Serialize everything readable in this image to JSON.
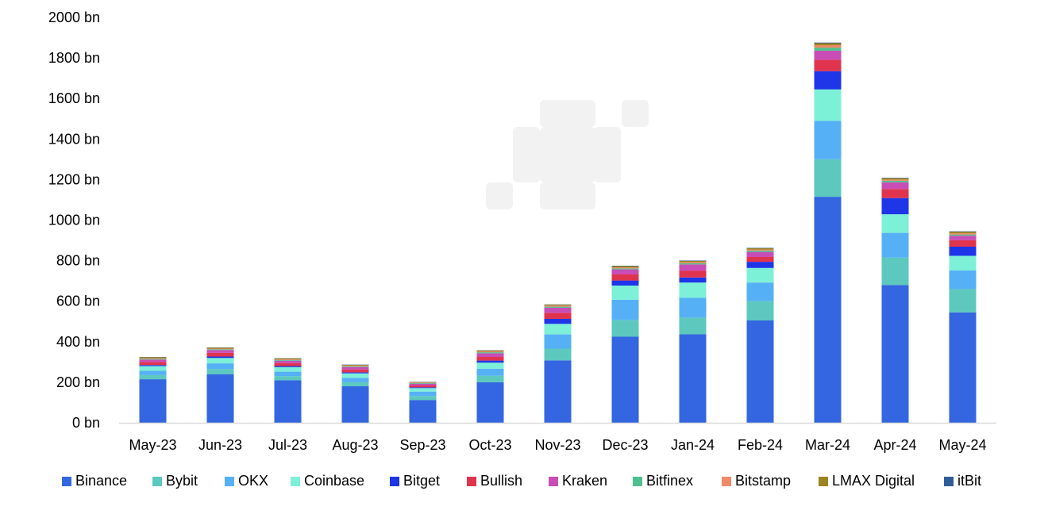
{
  "chart_data": {
    "type": "bar",
    "stacked": true,
    "title": "",
    "xlabel": "",
    "ylabel": "",
    "ylim": [
      0,
      2000
    ],
    "yticks": [
      0,
      200,
      400,
      600,
      800,
      1000,
      1200,
      1400,
      1600,
      1800,
      2000
    ],
    "ytick_labels": [
      "0 bn",
      "200 bn",
      "400 bn",
      "600 bn",
      "800 bn",
      "1000 bn",
      "1200 bn",
      "1400 bn",
      "1600 bn",
      "1800 bn",
      "2000 bn"
    ],
    "grid": false,
    "legend_position": "bottom",
    "categories": [
      "May-23",
      "Jun-23",
      "Jul-23",
      "Aug-23",
      "Sep-23",
      "Oct-23",
      "Nov-23",
      "Dec-23",
      "Jan-24",
      "Feb-24",
      "Mar-24",
      "Apr-24",
      "May-24"
    ],
    "series": [
      {
        "name": "Binance",
        "color": "#3366E0",
        "values": [
          215,
          240,
          210,
          180,
          112,
          200,
          308,
          425,
          437,
          505,
          1115,
          680,
          545
        ]
      },
      {
        "name": "Bybit",
        "color": "#5CC8BE",
        "values": [
          20,
          25,
          20,
          20,
          20,
          32,
          58,
          82,
          82,
          95,
          185,
          135,
          115
        ]
      },
      {
        "name": "OKX",
        "color": "#56B0F5",
        "values": [
          22,
          28,
          22,
          22,
          22,
          35,
          70,
          100,
          98,
          92,
          190,
          122,
          92
        ]
      },
      {
        "name": "Coinbase",
        "color": "#7DF0D8",
        "values": [
          23,
          27,
          23,
          22,
          17,
          30,
          52,
          70,
          75,
          72,
          155,
          92,
          72
        ]
      },
      {
        "name": "Bitget",
        "color": "#1E35E8",
        "values": [
          5,
          7,
          5,
          5,
          4,
          10,
          25,
          25,
          25,
          30,
          90,
          80,
          45
        ]
      },
      {
        "name": "Bullish",
        "color": "#E0344E",
        "values": [
          15,
          18,
          14,
          14,
          9,
          18,
          30,
          30,
          34,
          24,
          56,
          45,
          32
        ]
      },
      {
        "name": "Kraken",
        "color": "#C94DB6",
        "values": [
          12,
          14,
          12,
          12,
          9,
          18,
          25,
          25,
          30,
          25,
          45,
          32,
          22
        ]
      },
      {
        "name": "Bitfinex",
        "color": "#4FC08D",
        "values": [
          4,
          4,
          4,
          4,
          3,
          5,
          5,
          5,
          6,
          7,
          15,
          8,
          6
        ]
      },
      {
        "name": "Bitstamp",
        "color": "#EE8A66",
        "values": [
          3,
          3,
          3,
          3,
          2,
          4,
          5,
          5,
          6,
          5,
          12,
          6,
          6
        ]
      },
      {
        "name": "LMAX Digital",
        "color": "#9C8420",
        "values": [
          5,
          5,
          5,
          4,
          3,
          5,
          5,
          6,
          6,
          6,
          10,
          7,
          8
        ]
      },
      {
        "name": "itBit",
        "color": "#2E5C96",
        "values": [
          1,
          1,
          1,
          1,
          1,
          1,
          1,
          2,
          2,
          2,
          3,
          2,
          2
        ]
      }
    ]
  },
  "watermark_color": "#F2F2F2"
}
